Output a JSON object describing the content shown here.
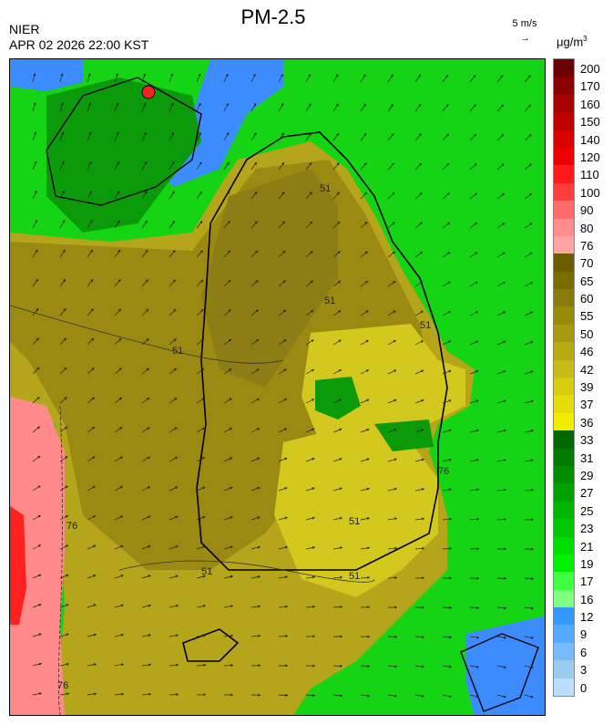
{
  "header": {
    "title": "PM-2.5",
    "agency": "NIER",
    "timestamp": "APR 02 2026 22:00 KST",
    "wind_reference": "5 m/s",
    "wind_arrow": "→",
    "unit_base": "μg/m",
    "unit_exp": "3"
  },
  "colorbar": {
    "labels": [
      "200",
      "170",
      "160",
      "150",
      "140",
      "120",
      "110",
      "100",
      "90",
      "80",
      "76",
      "70",
      "65",
      "60",
      "55",
      "50",
      "46",
      "42",
      "39",
      "37",
      "36",
      "33",
      "31",
      "29",
      "27",
      "25",
      "23",
      "21",
      "19",
      "17",
      "16",
      "12",
      "9",
      "6",
      "3",
      "0"
    ],
    "colors": [
      "#6b0000",
      "#8a0000",
      "#a60000",
      "#c00000",
      "#d80000",
      "#ee0000",
      "#ff1a1a",
      "#ff3d3d",
      "#ff6a6a",
      "#ff8c8c",
      "#ffa3a3",
      "#6b5c00",
      "#7a6b00",
      "#897a0a",
      "#988a0a",
      "#a89a10",
      "#b8aa12",
      "#c8bb18",
      "#d8cc10",
      "#e6dc0a",
      "#f2ec00",
      "#006600",
      "#007a00",
      "#008e00",
      "#00a200",
      "#00b600",
      "#00c800",
      "#00dc00",
      "#00f000",
      "#40ff40",
      "#80ff80",
      "#3399ff",
      "#55aaff",
      "#77bbff",
      "#99ccee",
      "#bbddff"
    ]
  },
  "map": {
    "contour_labels": [
      "51",
      "51",
      "51",
      "51",
      "51",
      "51",
      "51",
      "76",
      "76",
      "76"
    ],
    "regions": {
      "sea_green": "#14d414",
      "land_yellow": "#b4a51a",
      "yellow_light": "#d2c81e",
      "olive_dark": "#8c7d14",
      "pink": "#ff8a8a",
      "red": "#ff2020",
      "blue": "#3d8cff"
    }
  }
}
